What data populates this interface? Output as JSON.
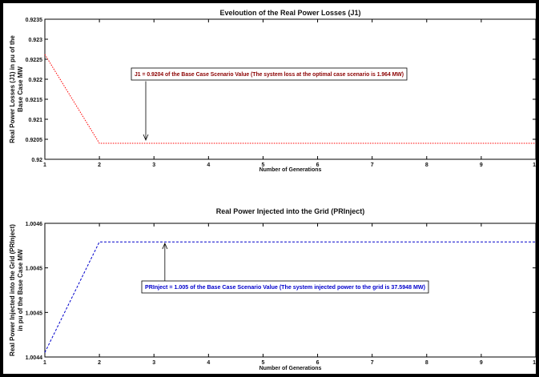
{
  "chart_data": [
    {
      "type": "line",
      "title": "Eveloution of the Real Power Losses (J1)",
      "xlabel": "Number of Generations",
      "ylabel_line1": "Real Power Losses (J1) in pu of the",
      "ylabel_line2": "Base Case MW",
      "xlim": [
        1,
        10
      ],
      "ylim": [
        0.92,
        0.9235
      ],
      "x_ticks": [
        1,
        2,
        3,
        4,
        5,
        6,
        7,
        8,
        9,
        10
      ],
      "y_ticks": [
        0.92,
        0.9205,
        0.921,
        0.9215,
        0.922,
        0.9225,
        0.923,
        0.9235
      ],
      "y_tick_labels": [
        "0.92",
        "0.9205",
        "0.921",
        "0.9215",
        "0.922",
        "0.9225",
        "0.923",
        "0.9235"
      ],
      "grid": false,
      "series": [
        {
          "color": "#ff0000",
          "style": "dotted",
          "x": [
            1,
            2,
            3,
            4,
            5,
            6,
            7,
            8,
            9,
            10
          ],
          "y": [
            0.92262,
            0.9204,
            0.9204,
            0.9204,
            0.9204,
            0.9204,
            0.9204,
            0.9204,
            0.9204,
            0.9204
          ]
        }
      ],
      "annotation": {
        "text": "J1 = 0.9204 of the Base Case Scenario Value (The system loss at the optimal case scenario is 1.964 MW)",
        "color": "#8b0000",
        "arrow_x": 2.85,
        "arrow_from_y": 0.92195,
        "arrow_to_y": 0.92048
      }
    },
    {
      "type": "line",
      "title": "Real Power Injected into the Grid (PRInject)",
      "xlabel": "Number of Generations",
      "ylabel_line1": "Real Power Injected into the Grid (PRInject)",
      "ylabel_line2": "in pu of the Base Case MW",
      "xlim": [
        1,
        10
      ],
      "ylim": [
        1.00443,
        1.00461
      ],
      "x_ticks": [
        1,
        2,
        3,
        4,
        5,
        6,
        7,
        8,
        9,
        10
      ],
      "y_ticks": [
        1.00443,
        1.00449,
        1.00455,
        1.00461
      ],
      "y_tick_labels": [
        "1.0044",
        "1.0045",
        "1.0045",
        "1.0046"
      ],
      "grid": false,
      "series": [
        {
          "color": "#0000cc",
          "style": "dashed",
          "x": [
            1,
            2,
            3,
            4,
            5,
            6,
            7,
            8,
            9,
            10
          ],
          "y": [
            1.004436,
            1.004585,
            1.004585,
            1.004585,
            1.004585,
            1.004585,
            1.004585,
            1.004585,
            1.004585,
            1.004585
          ]
        }
      ],
      "annotation": {
        "text": "PRInject = 1.005 of the Base Case Scenario Value (The system injected power to the grid is 37.5948 MW)",
        "color": "#0000cc",
        "arrow_x": 3.2,
        "arrow_from_y": 1.00453,
        "arrow_to_y": 1.004583
      }
    }
  ]
}
